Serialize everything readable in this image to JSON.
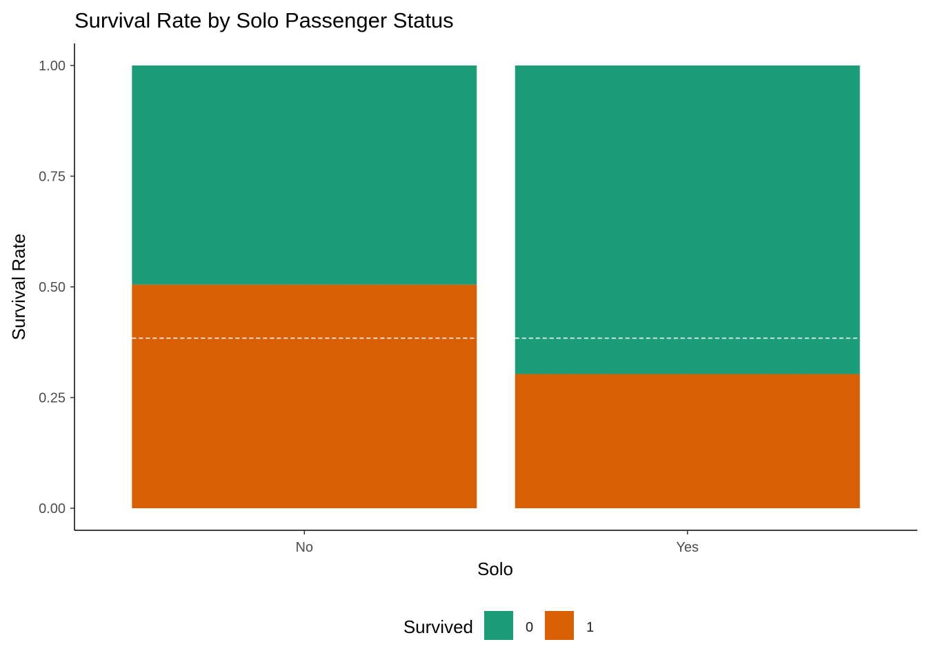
{
  "chart_data": {
    "type": "bar",
    "stacked": true,
    "title": "Survival Rate by Solo Passenger Status",
    "xlabel": "Solo",
    "ylabel": "Survival Rate",
    "categories": [
      "No",
      "Yes"
    ],
    "series": [
      {
        "name": "0",
        "values": [
          0.495,
          0.697
        ],
        "color": "#1B9E77"
      },
      {
        "name": "1",
        "values": [
          0.505,
          0.303
        ],
        "color": "#D95F02"
      }
    ],
    "reference_line": {
      "value": 0.384,
      "style": "dashed",
      "color": "#ffffff"
    },
    "ylim": [
      0,
      1
    ],
    "yticks": [
      0,
      0.25,
      0.5,
      0.75,
      1
    ],
    "ytick_labels": [
      "0.00",
      "0.25",
      "0.50",
      "0.75",
      "1.00"
    ],
    "grid": false,
    "legend": {
      "title": "Survived",
      "position": "bottom",
      "entries": [
        "0",
        "1"
      ]
    }
  }
}
